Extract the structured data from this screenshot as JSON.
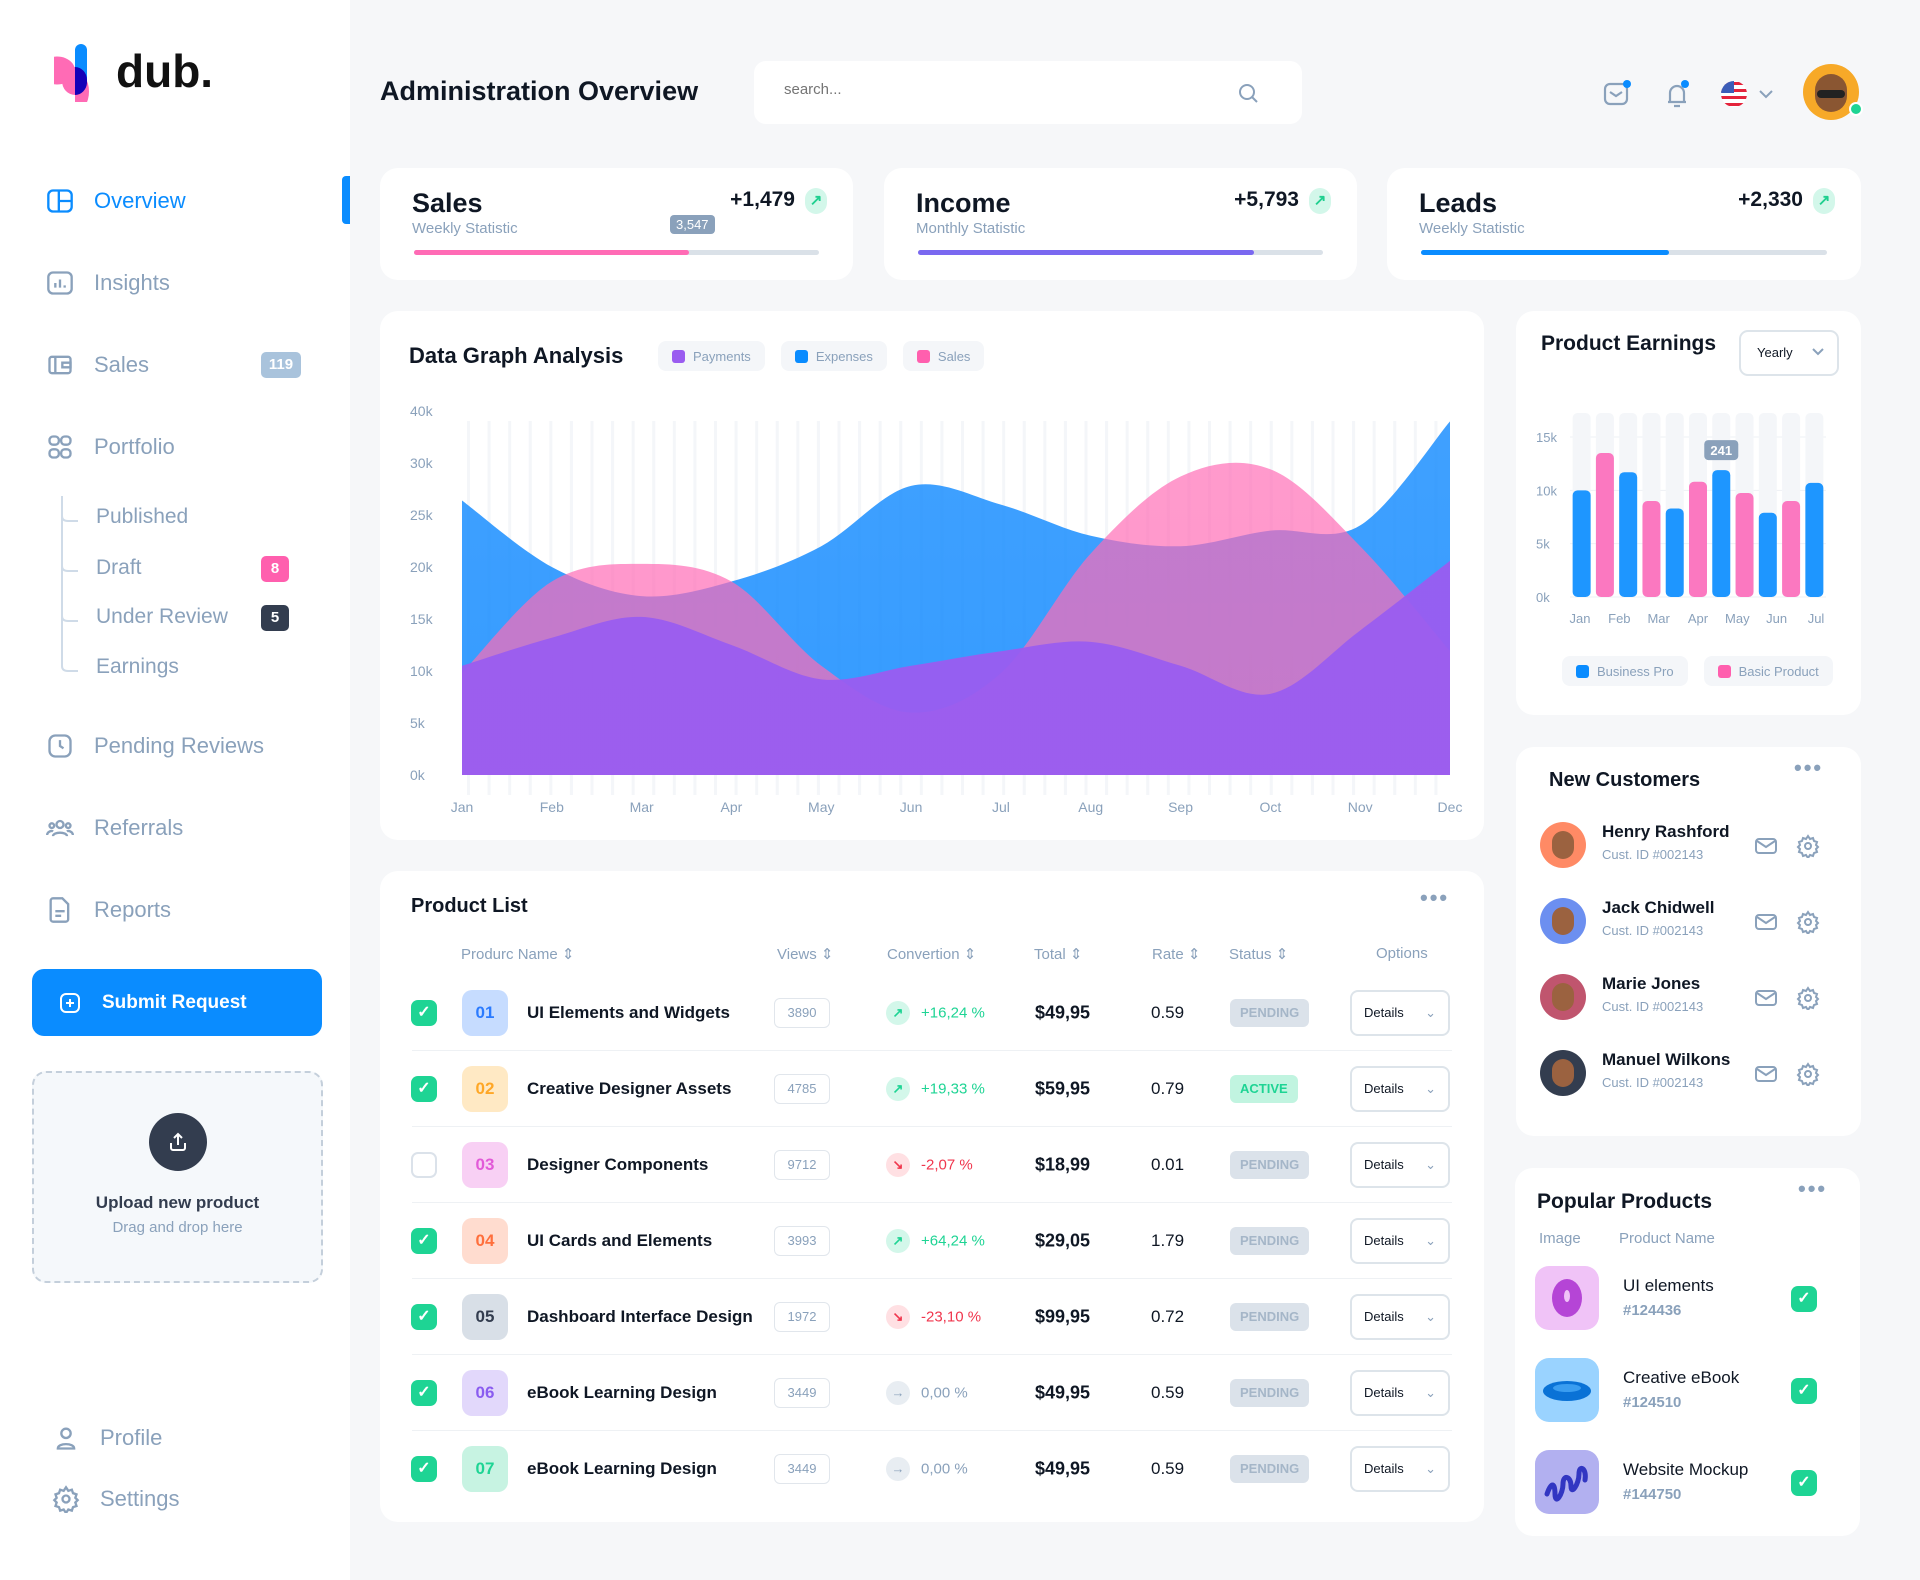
{
  "brand": {
    "name": "dub."
  },
  "sidebar": {
    "items": [
      {
        "label": "Overview"
      },
      {
        "label": "Insights"
      },
      {
        "label": "Sales",
        "badge": "119"
      },
      {
        "label": "Portfolio"
      },
      {
        "label": "Pending Reviews"
      },
      {
        "label": "Referrals"
      },
      {
        "label": "Reports"
      }
    ],
    "portfolio_sub": [
      {
        "label": "Published"
      },
      {
        "label": "Draft",
        "badge": "8"
      },
      {
        "label": "Under Review",
        "badge": "5"
      },
      {
        "label": "Earnings"
      }
    ],
    "submit_label": "Submit Request",
    "upload": {
      "title": "Upload new product",
      "subtitle": "Drag and drop here"
    },
    "profile_label": "Profile",
    "settings_label": "Settings"
  },
  "header": {
    "title": "Administration Overview",
    "search_placeholder": "search..."
  },
  "stats": [
    {
      "title": "Sales",
      "subtitle": "Weekly Statistic",
      "value": "+1,479",
      "tooltip": "3,547",
      "progress": 0.68,
      "color": "#ff6bb5"
    },
    {
      "title": "Income",
      "subtitle": "Monthly Statistic",
      "value": "+5,793",
      "progress": 0.83,
      "color": "#7a68f0"
    },
    {
      "title": "Leads",
      "subtitle": "Weekly Statistic",
      "value": "+2,330",
      "progress": 0.61,
      "color": "#0a8cff"
    }
  ],
  "chart_data": [
    {
      "type": "area",
      "title": "Data Graph Analysis",
      "categories": [
        "Jan",
        "Feb",
        "Mar",
        "Apr",
        "May",
        "Jun",
        "Jul",
        "Aug",
        "Sep",
        "Oct",
        "Nov",
        "Dec"
      ],
      "yticks": [
        "0k",
        "5k",
        "10k",
        "15k",
        "20k",
        "25k",
        "30k",
        "40k"
      ],
      "ylim": [
        0,
        40000
      ],
      "series": [
        {
          "name": "Expenses",
          "color": "#1e90ff",
          "values": [
            26400,
            20000,
            17200,
            18600,
            22000,
            27800,
            26000,
            23000,
            22000,
            23500,
            24000,
            38000
          ]
        },
        {
          "name": "Sales",
          "color": "#ff6bb5",
          "values": [
            9800,
            18600,
            20300,
            18600,
            10500,
            6000,
            9800,
            21300,
            28700,
            29400,
            22000,
            11900
          ]
        },
        {
          "name": "Payments",
          "color": "#9a5cf0",
          "values": [
            10500,
            13200,
            15200,
            12500,
            9200,
            10500,
            11900,
            12800,
            10500,
            7800,
            13900,
            20600
          ]
        }
      ],
      "legend": [
        "Payments",
        "Expenses",
        "Sales"
      ]
    },
    {
      "type": "bar",
      "title": "Product Earnings",
      "period": "Yearly",
      "yticks": [
        "0k",
        "5k",
        "10k",
        "15k"
      ],
      "ylim": [
        0,
        15000
      ],
      "xlabels": [
        "Jan",
        "Feb",
        "Mar",
        "Apr",
        "May",
        "Jun",
        "Jul"
      ],
      "values": [
        10000,
        13500,
        11700,
        9000,
        8300,
        10800,
        11900,
        9750,
        7900,
        9000,
        10700
      ],
      "bar_series": [
        "Business Pro",
        "Basic Product",
        "Business Pro",
        "Basic Product",
        "Business Pro",
        "Basic Product",
        "Business Pro",
        "Basic Product",
        "Business Pro",
        "Basic Product",
        "Business Pro"
      ],
      "tooltip": "241",
      "legend": [
        "Business Pro",
        "Basic Product"
      ]
    }
  ],
  "product_list": {
    "title": "Product List",
    "headers": [
      "Produrc Name",
      "Views",
      "Convertion",
      "Total",
      "Rate",
      "Status",
      "Options"
    ],
    "rows": [
      {
        "checked": true,
        "num": "01",
        "name": "UI Elements and Widgets",
        "views": "3890",
        "trend": "up",
        "conv": "+16,24 %",
        "total": "$49,95",
        "rate": "0.59",
        "status": "PENDING",
        "option": "Details"
      },
      {
        "checked": true,
        "num": "02",
        "name": "Creative Designer Assets",
        "views": "4785",
        "trend": "up",
        "conv": "+19,33 %",
        "total": "$59,95",
        "rate": "0.79",
        "status": "ACTIVE",
        "option": "Details"
      },
      {
        "checked": false,
        "num": "03",
        "name": "Designer Components",
        "views": "9712",
        "trend": "down",
        "conv": "-2,07 %",
        "total": "$18,99",
        "rate": "0.01",
        "status": "PENDING",
        "option": "Details"
      },
      {
        "checked": true,
        "num": "04",
        "name": "UI Cards and Elements",
        "views": "3993",
        "trend": "up",
        "conv": "+64,24 %",
        "total": "$29,05",
        "rate": "1.79",
        "status": "PENDING",
        "option": "Details"
      },
      {
        "checked": true,
        "num": "05",
        "name": "Dashboard Interface Design",
        "views": "1972",
        "trend": "down",
        "conv": "-23,10 %",
        "total": "$99,95",
        "rate": "0.72",
        "status": "PENDING",
        "option": "Details"
      },
      {
        "checked": true,
        "num": "06",
        "name": "eBook Learning Design",
        "views": "3449",
        "trend": "flat",
        "conv": "0,00 %",
        "total": "$49,95",
        "rate": "0.59",
        "status": "PENDING",
        "option": "Details"
      },
      {
        "checked": true,
        "num": "07",
        "name": "eBook Learning Design",
        "views": "3449",
        "trend": "flat",
        "conv": "0,00 %",
        "total": "$49,95",
        "rate": "0.59",
        "status": "PENDING",
        "option": "Details"
      }
    ]
  },
  "new_customers": {
    "title": "New Customers",
    "items": [
      {
        "name": "Henry Rashford",
        "id": "Cust. ID #002143"
      },
      {
        "name": "Jack Chidwell",
        "id": "Cust. ID #002143"
      },
      {
        "name": "Marie Jones",
        "id": "Cust. ID #002143"
      },
      {
        "name": "Manuel Wilkons",
        "id": "Cust. ID #002143"
      }
    ]
  },
  "popular_products": {
    "title": "Popular Products",
    "headers": [
      "Image",
      "Product Name"
    ],
    "items": [
      {
        "name": "UI elements",
        "id": "#124436"
      },
      {
        "name": "Creative eBook",
        "id": "#124510"
      },
      {
        "name": "Website Mockup",
        "id": "#144750"
      }
    ]
  }
}
